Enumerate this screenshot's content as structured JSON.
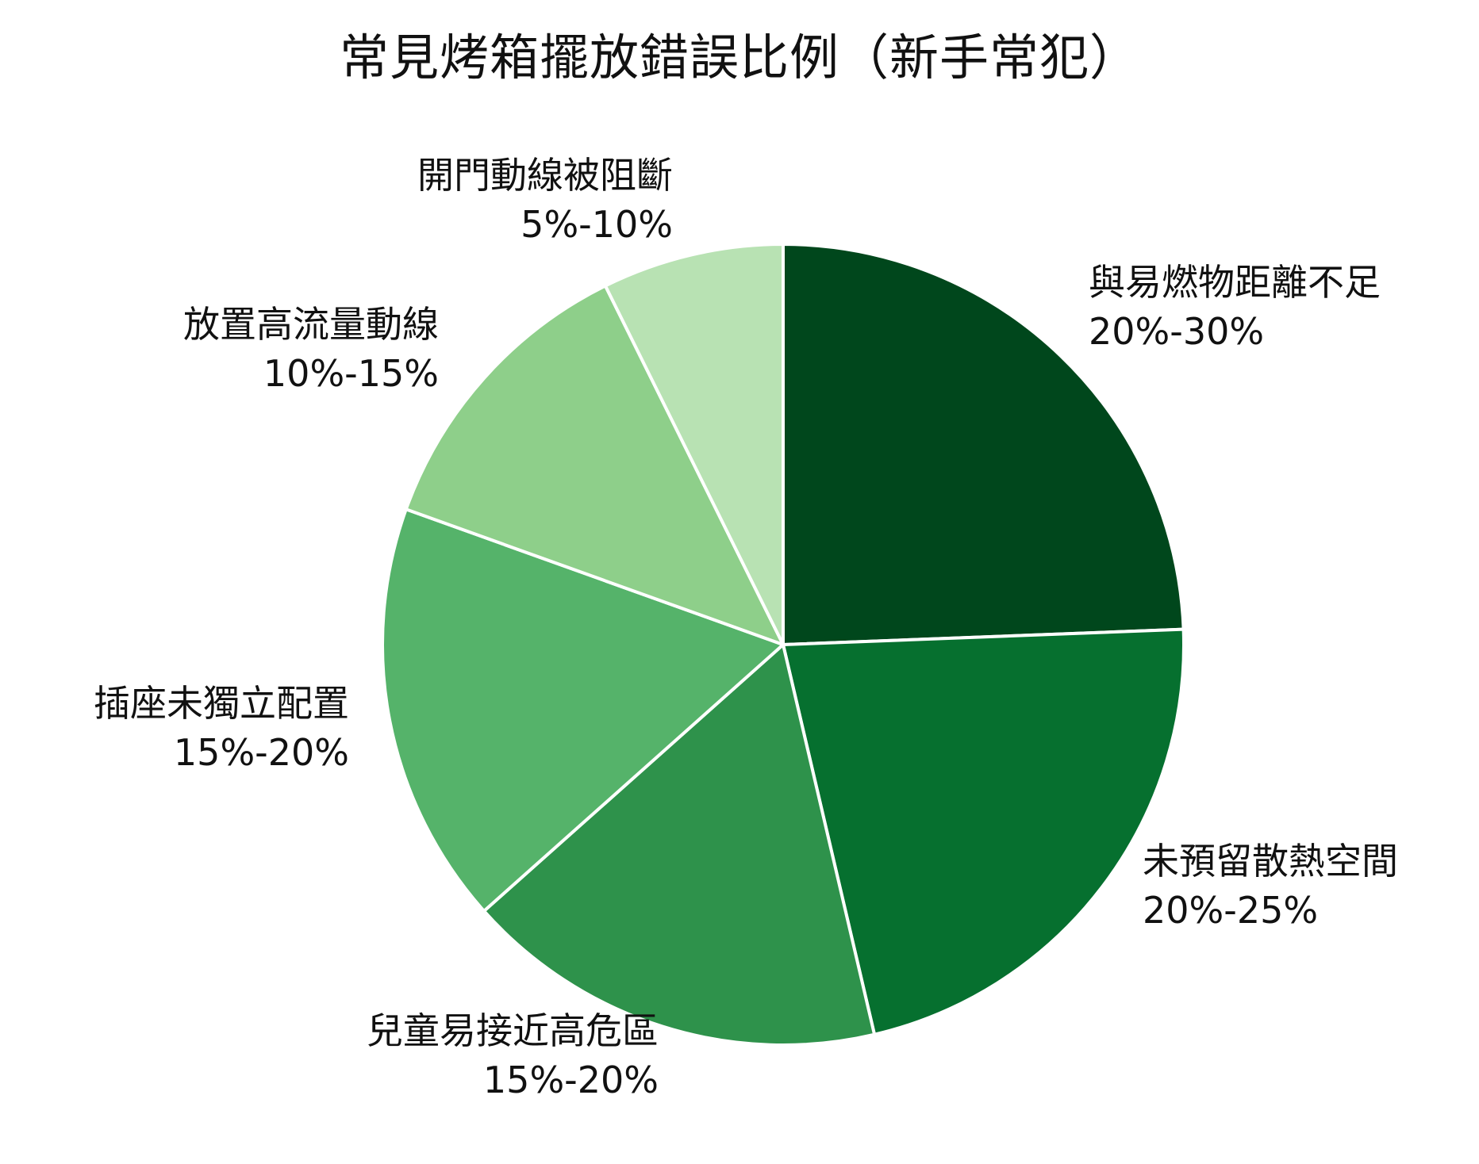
{
  "chart_data": {
    "type": "pie",
    "title": "常見烤箱擺放錯誤比例（新手常犯）",
    "slices": [
      {
        "label": "與易燃物距離不足",
        "range": "20%-30%",
        "value": 25,
        "color": "#00471c"
      },
      {
        "label": "未預留散熱空間",
        "range": "20%-25%",
        "value": 22.5,
        "color": "#06702f"
      },
      {
        "label": "兒童易接近高危區",
        "range": "15%-20%",
        "value": 17.5,
        "color": "#2e924b"
      },
      {
        "label": "插座未獨立配置",
        "range": "15%-20%",
        "value": 17.5,
        "color": "#55b36a"
      },
      {
        "label": "放置高流量動線",
        "range": "10%-15%",
        "value": 12.5,
        "color": "#8ecf8a"
      },
      {
        "label": "開門動線被阻斷",
        "range": "5%-10%",
        "value": 7.5,
        "color": "#b8e2b3"
      }
    ],
    "start_angle": "12 o'clock",
    "direction": "clockwise",
    "legend": "none"
  }
}
